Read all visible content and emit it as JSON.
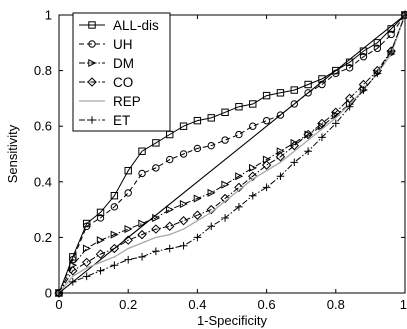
{
  "chart_data": {
    "type": "line",
    "title": "",
    "xlabel": "1-Specificity",
    "ylabel": "Sensitivity",
    "xlim": [
      0,
      1
    ],
    "ylim": [
      0,
      1
    ],
    "x_ticks": [
      "0",
      "0.2",
      "0.4",
      "0.6",
      "0.8",
      "1"
    ],
    "y_ticks": [
      "0",
      "0.2",
      "0.4",
      "0.6",
      "0.8",
      "1"
    ],
    "grid": false,
    "legend_position": "top-left",
    "diagonal_reference": true,
    "series": [
      {
        "name": "ALL-dis",
        "color": "#000000",
        "dash": "solid",
        "marker": "square",
        "points": [
          [
            0,
            0
          ],
          [
            0.04,
            0.13
          ],
          [
            0.08,
            0.25
          ],
          [
            0.12,
            0.29
          ],
          [
            0.16,
            0.35
          ],
          [
            0.2,
            0.44
          ],
          [
            0.24,
            0.51
          ],
          [
            0.28,
            0.54
          ],
          [
            0.32,
            0.57
          ],
          [
            0.36,
            0.6
          ],
          [
            0.4,
            0.62
          ],
          [
            0.44,
            0.63
          ],
          [
            0.48,
            0.65
          ],
          [
            0.52,
            0.67
          ],
          [
            0.56,
            0.68
          ],
          [
            0.6,
            0.71
          ],
          [
            0.64,
            0.72
          ],
          [
            0.68,
            0.73
          ],
          [
            0.72,
            0.75
          ],
          [
            0.76,
            0.77
          ],
          [
            0.8,
            0.8
          ],
          [
            0.84,
            0.83
          ],
          [
            0.88,
            0.87
          ],
          [
            0.92,
            0.9
          ],
          [
            0.96,
            0.95
          ],
          [
            1,
            1
          ]
        ]
      },
      {
        "name": "UH",
        "color": "#000000",
        "dash": "dashed",
        "marker": "circle",
        "points": [
          [
            0,
            0
          ],
          [
            0.04,
            0.12
          ],
          [
            0.08,
            0.24
          ],
          [
            0.12,
            0.27
          ],
          [
            0.16,
            0.31
          ],
          [
            0.2,
            0.36
          ],
          [
            0.24,
            0.43
          ],
          [
            0.28,
            0.45
          ],
          [
            0.32,
            0.48
          ],
          [
            0.36,
            0.5
          ],
          [
            0.4,
            0.52
          ],
          [
            0.44,
            0.53
          ],
          [
            0.48,
            0.55
          ],
          [
            0.52,
            0.57
          ],
          [
            0.56,
            0.6
          ],
          [
            0.6,
            0.62
          ],
          [
            0.64,
            0.64
          ],
          [
            0.68,
            0.68
          ],
          [
            0.72,
            0.72
          ],
          [
            0.76,
            0.75
          ],
          [
            0.8,
            0.79
          ],
          [
            0.84,
            0.81
          ],
          [
            0.88,
            0.85
          ],
          [
            0.92,
            0.88
          ],
          [
            0.96,
            0.93
          ],
          [
            1,
            1
          ]
        ]
      },
      {
        "name": "DM",
        "color": "#000000",
        "dash": "dashdot",
        "marker": "triangle-right",
        "points": [
          [
            0,
            0
          ],
          [
            0.04,
            0.1
          ],
          [
            0.08,
            0.16
          ],
          [
            0.12,
            0.19
          ],
          [
            0.16,
            0.21
          ],
          [
            0.2,
            0.23
          ],
          [
            0.24,
            0.25
          ],
          [
            0.28,
            0.27
          ],
          [
            0.32,
            0.3
          ],
          [
            0.36,
            0.32
          ],
          [
            0.4,
            0.34
          ],
          [
            0.44,
            0.36
          ],
          [
            0.48,
            0.39
          ],
          [
            0.52,
            0.42
          ],
          [
            0.56,
            0.45
          ],
          [
            0.6,
            0.48
          ],
          [
            0.64,
            0.51
          ],
          [
            0.68,
            0.54
          ],
          [
            0.72,
            0.57
          ],
          [
            0.76,
            0.6
          ],
          [
            0.8,
            0.64
          ],
          [
            0.84,
            0.68
          ],
          [
            0.88,
            0.73
          ],
          [
            0.92,
            0.79
          ],
          [
            0.96,
            0.86
          ],
          [
            1,
            1
          ]
        ]
      },
      {
        "name": "CO",
        "color": "#000000",
        "dash": "dashdot",
        "marker": "diamond",
        "points": [
          [
            0,
            0
          ],
          [
            0.04,
            0.08
          ],
          [
            0.08,
            0.11
          ],
          [
            0.12,
            0.14
          ],
          [
            0.16,
            0.16
          ],
          [
            0.2,
            0.19
          ],
          [
            0.24,
            0.21
          ],
          [
            0.28,
            0.23
          ],
          [
            0.32,
            0.24
          ],
          [
            0.36,
            0.26
          ],
          [
            0.4,
            0.28
          ],
          [
            0.44,
            0.3
          ],
          [
            0.48,
            0.34
          ],
          [
            0.52,
            0.38
          ],
          [
            0.56,
            0.42
          ],
          [
            0.6,
            0.46
          ],
          [
            0.64,
            0.49
          ],
          [
            0.68,
            0.53
          ],
          [
            0.72,
            0.57
          ],
          [
            0.76,
            0.61
          ],
          [
            0.8,
            0.65
          ],
          [
            0.84,
            0.7
          ],
          [
            0.88,
            0.75
          ],
          [
            0.92,
            0.8
          ],
          [
            0.96,
            0.87
          ],
          [
            1,
            1
          ]
        ]
      },
      {
        "name": "REP",
        "color": "#a8a8a8",
        "dash": "solid",
        "marker": "none",
        "points": [
          [
            0,
            0
          ],
          [
            0.04,
            0.06
          ],
          [
            0.08,
            0.09
          ],
          [
            0.12,
            0.11
          ],
          [
            0.16,
            0.13
          ],
          [
            0.2,
            0.16
          ],
          [
            0.24,
            0.18
          ],
          [
            0.28,
            0.2
          ],
          [
            0.32,
            0.21
          ],
          [
            0.36,
            0.23
          ],
          [
            0.4,
            0.26
          ],
          [
            0.44,
            0.29
          ],
          [
            0.48,
            0.33
          ],
          [
            0.52,
            0.37
          ],
          [
            0.56,
            0.41
          ],
          [
            0.6,
            0.44
          ],
          [
            0.64,
            0.47
          ],
          [
            0.68,
            0.51
          ],
          [
            0.72,
            0.55
          ],
          [
            0.76,
            0.59
          ],
          [
            0.8,
            0.63
          ],
          [
            0.84,
            0.68
          ],
          [
            0.88,
            0.73
          ],
          [
            0.92,
            0.79
          ],
          [
            0.96,
            0.86
          ],
          [
            1,
            1
          ]
        ]
      },
      {
        "name": "ET",
        "color": "#000000",
        "dash": "dashdot",
        "marker": "plus",
        "points": [
          [
            0,
            0
          ],
          [
            0.04,
            0.04
          ],
          [
            0.08,
            0.06
          ],
          [
            0.12,
            0.08
          ],
          [
            0.16,
            0.1
          ],
          [
            0.2,
            0.12
          ],
          [
            0.24,
            0.13
          ],
          [
            0.28,
            0.15
          ],
          [
            0.32,
            0.16
          ],
          [
            0.36,
            0.17
          ],
          [
            0.4,
            0.2
          ],
          [
            0.44,
            0.24
          ],
          [
            0.48,
            0.27
          ],
          [
            0.52,
            0.31
          ],
          [
            0.56,
            0.35
          ],
          [
            0.6,
            0.38
          ],
          [
            0.64,
            0.42
          ],
          [
            0.68,
            0.47
          ],
          [
            0.72,
            0.51
          ],
          [
            0.76,
            0.56
          ],
          [
            0.8,
            0.61
          ],
          [
            0.84,
            0.67
          ],
          [
            0.88,
            0.73
          ],
          [
            0.92,
            0.79
          ],
          [
            0.96,
            0.87
          ],
          [
            1,
            1
          ]
        ]
      }
    ]
  }
}
